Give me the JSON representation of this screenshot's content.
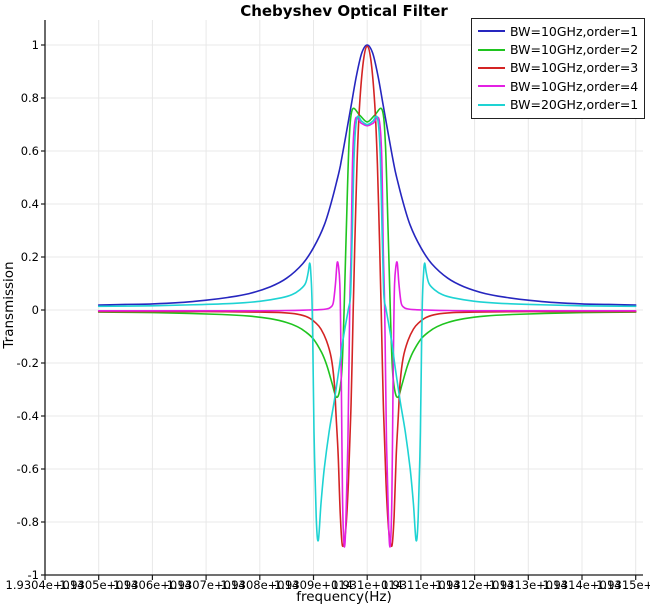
{
  "chart_data": {
    "type": "line",
    "title": "Chebyshev Optical Filter",
    "xlabel": "frequency(Hz)",
    "ylabel": "Transmission",
    "grid": true,
    "legend_position": "top-right",
    "center_frequency_hz": 193100000000000.0,
    "x_axis": {
      "tick_labels": [
        "1.9304e+014",
        "1.9305e+014",
        "1.9306e+014",
        "1.9307e+014",
        "1.9308e+014",
        "1.9309e+014",
        "1.931e+014",
        "1.9311e+014",
        "1.9312e+014",
        "1.9313e+014",
        "1.9314e+014",
        "1.9315e+014"
      ],
      "tick_values_hz": [
        193040000000000.0,
        193050000000000.0,
        193060000000000.0,
        193070000000000.0,
        193080000000000.0,
        193090000000000.0,
        193100000000000.0,
        193110000000000.0,
        193120000000000.0,
        193130000000000.0,
        193140000000000.0,
        193150000000000.0
      ],
      "min_hz": 193040000000000.0
    },
    "y_axis": {
      "tick_labels": [
        "1",
        "0.8",
        "0.6",
        "0.4",
        "0.2",
        "0",
        "-0.2",
        "-0.4",
        "-0.6",
        "-0.8",
        "-1"
      ],
      "tick_values": [
        1,
        0.8,
        0.6,
        0.4,
        0.2,
        0,
        -0.2,
        -0.4,
        -0.6,
        -0.8,
        -1
      ],
      "min": -1,
      "max": 1
    },
    "series": [
      {
        "label": "BW=10GHz,order=1",
        "color": "#2626bf",
        "bw_ghz": 10,
        "order": 1,
        "symmetric": true,
        "points_detuning_ghz_vs_transmission": [
          [
            0,
            1.0
          ],
          [
            1,
            0.97
          ],
          [
            2,
            0.885
          ],
          [
            3,
            0.77
          ],
          [
            4,
            0.655
          ],
          [
            5,
            0.545
          ],
          [
            5.5,
            0.5
          ],
          [
            6.5,
            0.42
          ],
          [
            8,
            0.32
          ],
          [
            10,
            0.235
          ],
          [
            12,
            0.175
          ],
          [
            15,
            0.12
          ],
          [
            18,
            0.088
          ],
          [
            22,
            0.062
          ],
          [
            26,
            0.047
          ],
          [
            30,
            0.037
          ],
          [
            35,
            0.028
          ],
          [
            40,
            0.023
          ],
          [
            45,
            0.021
          ],
          [
            50,
            0.019
          ]
        ]
      },
      {
        "label": "BW=10GHz,order=2",
        "color": "#1fc41f",
        "bw_ghz": 10,
        "order": 2,
        "symmetric": true,
        "points_detuning_ghz_vs_transmission": [
          [
            0,
            0.71
          ],
          [
            1.4,
            0.735
          ],
          [
            2.8,
            0.755
          ],
          [
            3.4,
            0.62
          ],
          [
            3.9,
            0.3
          ],
          [
            4.3,
            0.0
          ],
          [
            4.7,
            -0.22
          ],
          [
            5.2,
            -0.31
          ],
          [
            5.8,
            -0.328
          ],
          [
            6.5,
            -0.28
          ],
          [
            7.5,
            -0.21
          ],
          [
            8.5,
            -0.16
          ],
          [
            10,
            -0.11
          ],
          [
            11.5,
            -0.082
          ],
          [
            13,
            -0.063
          ],
          [
            15,
            -0.047
          ],
          [
            18,
            -0.033
          ],
          [
            22,
            -0.023
          ],
          [
            27,
            -0.017
          ],
          [
            33,
            -0.013
          ],
          [
            40,
            -0.01
          ],
          [
            50,
            -0.008
          ]
        ]
      },
      {
        "label": "BW=10GHz,order=3",
        "color": "#d42424",
        "bw_ghz": 10,
        "order": 3,
        "symmetric": true,
        "points_detuning_ghz_vs_transmission": [
          [
            0,
            0.995
          ],
          [
            0.7,
            0.94
          ],
          [
            1.4,
            0.78
          ],
          [
            1.9,
            0.55
          ],
          [
            2.3,
            0.25
          ],
          [
            2.6,
            0.0
          ],
          [
            3.0,
            -0.35
          ],
          [
            3.5,
            -0.65
          ],
          [
            4.0,
            -0.83
          ],
          [
            4.6,
            -0.89
          ],
          [
            5.0,
            -0.78
          ],
          [
            5.4,
            -0.55
          ],
          [
            5.8,
            -0.4
          ],
          [
            6.1,
            -0.28
          ],
          [
            6.7,
            -0.18
          ],
          [
            7.6,
            -0.115
          ],
          [
            8.6,
            -0.072
          ],
          [
            9.5,
            -0.05
          ],
          [
            11,
            -0.028
          ],
          [
            13,
            -0.016
          ],
          [
            16,
            -0.01
          ],
          [
            20,
            -0.008
          ],
          [
            30,
            -0.006
          ],
          [
            40,
            -0.006
          ],
          [
            50,
            -0.006
          ]
        ]
      },
      {
        "label": "BW=10GHz,order=4",
        "color": "#e320e3",
        "bw_ghz": 10,
        "order": 4,
        "symmetric": true,
        "points_detuning_ghz_vs_transmission": [
          [
            0,
            0.695
          ],
          [
            1.1,
            0.705
          ],
          [
            2.2,
            0.72
          ],
          [
            2.7,
            0.58
          ],
          [
            3.0,
            0.22
          ],
          [
            3.26,
            0.0
          ],
          [
            3.6,
            -0.5
          ],
          [
            4.0,
            -0.82
          ],
          [
            4.3,
            -0.887
          ],
          [
            4.6,
            -0.7
          ],
          [
            4.8,
            -0.3
          ],
          [
            4.95,
            -0.05
          ],
          [
            5.1,
            0.1
          ],
          [
            5.35,
            0.165
          ],
          [
            5.6,
            0.177
          ],
          [
            5.9,
            0.1
          ],
          [
            6.3,
            0.03
          ],
          [
            6.7,
            0.012
          ],
          [
            7.5,
            0.004
          ],
          [
            9,
            0.001
          ],
          [
            11,
            0.0
          ],
          [
            15,
            -0.002
          ],
          [
            25,
            -0.003
          ],
          [
            50,
            -0.003
          ]
        ]
      },
      {
        "label": "BW=20GHz,order=1",
        "color": "#1ed3d3",
        "bw_ghz": 20,
        "order": 1,
        "symmetric": true,
        "points_detuning_ghz_vs_transmission": [
          [
            0,
            0.7
          ],
          [
            1.0,
            0.712
          ],
          [
            1.9,
            0.725
          ],
          [
            2.4,
            0.6
          ],
          [
            2.8,
            0.28
          ],
          [
            3.1,
            0.06
          ],
          [
            3.54,
            0.0
          ],
          [
            4.5,
            -0.113
          ],
          [
            5.2,
            -0.215
          ],
          [
            6.1,
            -0.34
          ],
          [
            7.1,
            -0.46
          ],
          [
            8.0,
            -0.6
          ],
          [
            8.6,
            -0.73
          ],
          [
            9.1,
            -0.87
          ],
          [
            9.5,
            -0.78
          ],
          [
            9.9,
            -0.46
          ],
          [
            10.15,
            -0.1
          ],
          [
            10.3,
            0.05
          ],
          [
            10.5,
            0.14
          ],
          [
            10.7,
            0.177
          ],
          [
            11.0,
            0.14
          ],
          [
            11.5,
            0.1
          ],
          [
            12.5,
            0.077
          ],
          [
            14,
            0.058
          ],
          [
            16,
            0.046
          ],
          [
            20,
            0.033
          ],
          [
            25,
            0.025
          ],
          [
            32,
            0.02
          ],
          [
            40,
            0.016
          ],
          [
            50,
            0.014
          ]
        ]
      }
    ]
  },
  "style_colors": {
    "axis": "#1a1a1a",
    "grid": "#e8e8e8",
    "background": "#ffffff"
  }
}
